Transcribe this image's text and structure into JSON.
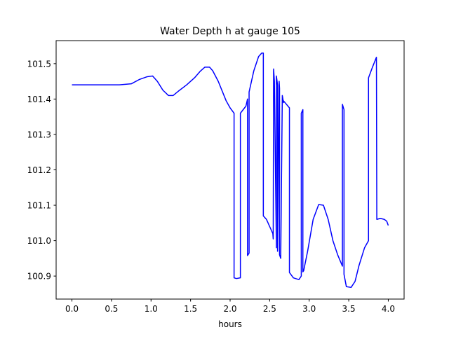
{
  "chart_data": {
    "type": "line",
    "title": "Water Depth h at gauge 105",
    "xlabel": "hours",
    "ylabel": "",
    "xlim": [
      -0.2,
      4.2
    ],
    "ylim": [
      100.835,
      101.565
    ],
    "grid": false,
    "legend": "none",
    "xticks": [
      0.0,
      0.5,
      1.0,
      1.5,
      2.0,
      2.5,
      3.0,
      3.5,
      4.0
    ],
    "xtick_labels": [
      "0.0",
      "0.5",
      "1.0",
      "1.5",
      "2.0",
      "2.5",
      "3.0",
      "3.5",
      "4.0"
    ],
    "yticks": [
      100.9,
      101.0,
      101.1,
      101.2,
      101.3,
      101.4,
      101.5
    ],
    "ytick_labels": [
      "100.9",
      "101.0",
      "101.1",
      "101.2",
      "101.3",
      "101.4",
      "101.5"
    ],
    "series": [
      {
        "color": "#0000ff",
        "x": [
          0.0,
          0.3,
          0.6,
          0.75,
          0.85,
          0.95,
          1.02,
          1.08,
          1.15,
          1.22,
          1.28,
          1.35,
          1.45,
          1.55,
          1.62,
          1.68,
          1.74,
          1.78,
          1.85,
          1.95,
          2.0,
          2.05,
          2.05,
          2.08,
          2.13,
          2.13,
          2.2,
          2.22,
          2.22,
          2.24,
          2.24,
          2.3,
          2.36,
          2.4,
          2.42,
          2.42,
          2.46,
          2.5,
          2.54,
          2.545,
          2.55,
          2.56,
          2.585,
          2.585,
          2.6,
          2.6,
          2.62,
          2.625,
          2.625,
          2.64,
          2.66,
          2.675,
          2.675,
          2.75,
          2.75,
          2.8,
          2.87,
          2.9,
          2.9,
          2.92,
          2.92,
          2.93,
          2.98,
          3.05,
          3.12,
          3.18,
          3.24,
          3.3,
          3.36,
          3.42,
          3.42,
          3.44,
          3.44,
          3.47,
          3.53,
          3.58,
          3.63,
          3.7,
          3.75,
          3.75,
          3.8,
          3.85,
          3.855,
          3.855,
          3.9,
          3.95,
          3.98,
          4.0
        ],
        "y": [
          101.44,
          101.44,
          101.44,
          101.443,
          101.455,
          101.463,
          101.465,
          101.45,
          101.425,
          101.41,
          101.41,
          101.423,
          101.44,
          101.46,
          101.478,
          101.49,
          101.49,
          101.48,
          101.45,
          101.395,
          101.375,
          101.36,
          100.895,
          100.893,
          100.895,
          101.36,
          101.38,
          101.4,
          100.958,
          100.965,
          101.42,
          101.48,
          101.52,
          101.53,
          101.53,
          101.07,
          101.06,
          101.04,
          101.02,
          101.005,
          101.485,
          101.45,
          100.98,
          101.465,
          101.44,
          100.97,
          101.45,
          101.43,
          100.96,
          100.95,
          101.41,
          101.39,
          101.395,
          101.375,
          100.91,
          100.895,
          100.89,
          100.9,
          101.36,
          101.37,
          100.912,
          100.915,
          100.97,
          101.06,
          101.102,
          101.1,
          101.06,
          101.0,
          100.96,
          100.928,
          101.385,
          101.37,
          100.905,
          100.87,
          100.868,
          100.885,
          100.93,
          100.98,
          101.0,
          101.46,
          101.49,
          101.518,
          101.06,
          101.06,
          101.063,
          101.06,
          101.055,
          101.043
        ]
      }
    ]
  }
}
